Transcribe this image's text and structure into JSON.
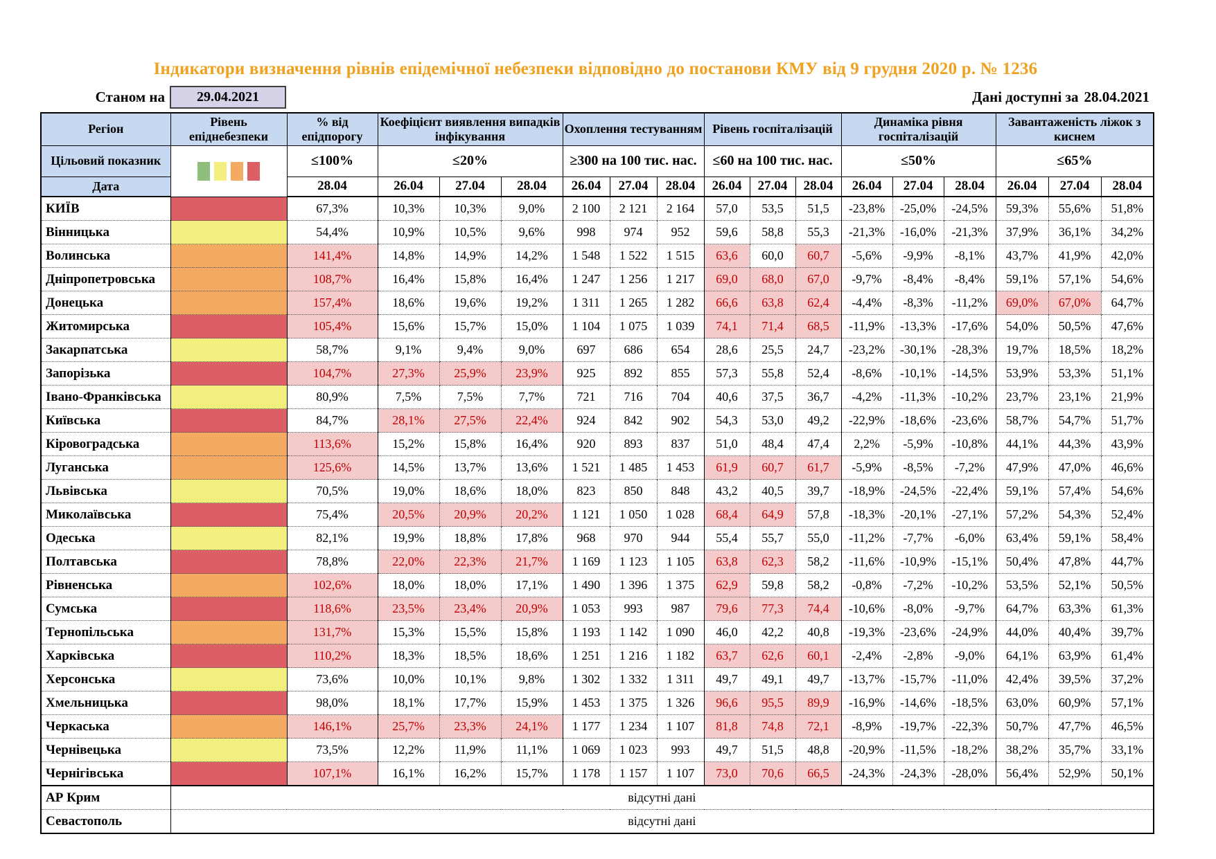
{
  "page_title": "Індикатори визначення рівнів епідемічної небезпеки відповідно до постанови КМУ від 9 грудня 2020 р. № 1236",
  "header": {
    "as_of_label": "Станом на",
    "as_of_date": "29.04.2021",
    "available_label": "Дані доступні за",
    "available_date": "28.04.2021"
  },
  "colors": {
    "title_orange": "#EFA11F",
    "header_bg": "#C6D9F0",
    "date_box_bg": "#D8D2E8",
    "level_green": "#90BE7D",
    "level_yellow": "#F2EF7E",
    "level_orange": "#F3AB62",
    "level_red": "#DD5F66",
    "highlight_bg": "#F5CACA",
    "highlight_text": "#C00000"
  },
  "table": {
    "region_header": "Регіон",
    "level_header": "Рівень епіднебезпеки",
    "target_label": "Цільовий показник",
    "date_label": "Дата",
    "legend_squares": [
      "green",
      "yellow",
      "orange",
      "red"
    ],
    "groups": [
      {
        "label": "% від епідпорогу",
        "target": "≤100%",
        "dates": [
          "28.04"
        ]
      },
      {
        "label": "Коефіцієнт виявлення випадків інфікування",
        "target": "≤20%",
        "dates": [
          "26.04",
          "27.04",
          "28.04"
        ]
      },
      {
        "label": "Охоплення тестуванням",
        "target": "≥300 на 100 тис. нас.",
        "dates": [
          "26.04",
          "27.04",
          "28.04"
        ]
      },
      {
        "label": "Рівень госпіталізацій",
        "target": "≤60 на 100 тис. нас.",
        "dates": [
          "26.04",
          "27.04",
          "28.04"
        ]
      },
      {
        "label": "Динаміка рівня госпіталізацій",
        "target": "≤50%",
        "dates": [
          "26.04",
          "27.04",
          "28.04"
        ]
      },
      {
        "label": "Завантаженість ліжок з киснем",
        "target": "≤65%",
        "dates": [
          "26.04",
          "27.04",
          "28.04"
        ]
      }
    ],
    "rows": [
      {
        "region": "КИЇВ",
        "level": "red",
        "values": [
          "67,3%",
          "10,3%",
          "10,3%",
          "9,0%",
          "2 100",
          "2 121",
          "2 164",
          "57,0",
          "53,5",
          "51,5",
          "-23,8%",
          "-25,0%",
          "-24,5%",
          "59,3%",
          "55,6%",
          "51,8%"
        ],
        "hl": []
      },
      {
        "region": "Вінницька",
        "level": "yellow",
        "values": [
          "54,4%",
          "10,9%",
          "10,5%",
          "9,6%",
          "998",
          "974",
          "952",
          "59,6",
          "58,8",
          "55,3",
          "-21,3%",
          "-16,0%",
          "-21,3%",
          "37,9%",
          "36,1%",
          "34,2%"
        ],
        "hl": []
      },
      {
        "region": "Волинська",
        "level": "orange",
        "values": [
          "141,4%",
          "14,8%",
          "14,9%",
          "14,2%",
          "1 548",
          "1 522",
          "1 515",
          "63,6",
          "60,0",
          "60,7",
          "-5,6%",
          "-9,9%",
          "-8,1%",
          "43,7%",
          "41,9%",
          "42,0%"
        ],
        "hl": [
          0,
          7,
          9
        ]
      },
      {
        "region": "Дніпропетровська",
        "level": "orange",
        "values": [
          "108,7%",
          "16,4%",
          "15,8%",
          "16,4%",
          "1 247",
          "1 256",
          "1 217",
          "69,0",
          "68,0",
          "67,0",
          "-9,7%",
          "-8,4%",
          "-8,4%",
          "59,1%",
          "57,1%",
          "54,6%"
        ],
        "hl": [
          0,
          7,
          8,
          9
        ]
      },
      {
        "region": "Донецька",
        "level": "orange",
        "values": [
          "157,4%",
          "18,6%",
          "19,6%",
          "19,2%",
          "1 311",
          "1 265",
          "1 282",
          "66,6",
          "63,8",
          "62,4",
          "-4,4%",
          "-8,3%",
          "-11,2%",
          "69,0%",
          "67,0%",
          "64,7%"
        ],
        "hl": [
          0,
          7,
          8,
          9,
          13,
          14
        ]
      },
      {
        "region": "Житомирська",
        "level": "red",
        "values": [
          "105,4%",
          "15,6%",
          "15,7%",
          "15,0%",
          "1 104",
          "1 075",
          "1 039",
          "74,1",
          "71,4",
          "68,5",
          "-11,9%",
          "-13,3%",
          "-17,6%",
          "54,0%",
          "50,5%",
          "47,6%"
        ],
        "hl": [
          0,
          7,
          8,
          9
        ]
      },
      {
        "region": "Закарпатська",
        "level": "yellow",
        "values": [
          "58,7%",
          "9,1%",
          "9,4%",
          "9,0%",
          "697",
          "686",
          "654",
          "28,6",
          "25,5",
          "24,7",
          "-23,2%",
          "-30,1%",
          "-28,3%",
          "19,7%",
          "18,5%",
          "18,2%"
        ],
        "hl": []
      },
      {
        "region": "Запорізька",
        "level": "red",
        "values": [
          "104,7%",
          "27,3%",
          "25,9%",
          "23,9%",
          "925",
          "892",
          "855",
          "57,3",
          "55,8",
          "52,4",
          "-8,6%",
          "-10,1%",
          "-14,5%",
          "53,9%",
          "53,3%",
          "51,1%"
        ],
        "hl": [
          0,
          1,
          2,
          3
        ]
      },
      {
        "region": "Івано-Франківська",
        "level": "yellow",
        "values": [
          "80,9%",
          "7,5%",
          "7,5%",
          "7,7%",
          "721",
          "716",
          "704",
          "40,6",
          "37,5",
          "36,7",
          "-4,2%",
          "-11,3%",
          "-10,2%",
          "23,7%",
          "23,1%",
          "21,9%"
        ],
        "hl": []
      },
      {
        "region": "Київська",
        "level": "red",
        "values": [
          "84,7%",
          "28,1%",
          "27,5%",
          "22,4%",
          "924",
          "842",
          "902",
          "54,3",
          "53,0",
          "49,2",
          "-22,9%",
          "-18,6%",
          "-23,6%",
          "58,7%",
          "54,7%",
          "51,7%"
        ],
        "hl": [
          1,
          2,
          3
        ]
      },
      {
        "region": "Кіровоградська",
        "level": "orange",
        "values": [
          "113,6%",
          "15,2%",
          "15,8%",
          "16,4%",
          "920",
          "893",
          "837",
          "51,0",
          "48,4",
          "47,4",
          "2,2%",
          "-5,9%",
          "-10,8%",
          "44,1%",
          "44,3%",
          "43,9%"
        ],
        "hl": [
          0
        ]
      },
      {
        "region": "Луганська",
        "level": "orange",
        "values": [
          "125,6%",
          "14,5%",
          "13,7%",
          "13,6%",
          "1 521",
          "1 485",
          "1 453",
          "61,9",
          "60,7",
          "61,7",
          "-5,9%",
          "-8,5%",
          "-7,2%",
          "47,9%",
          "47,0%",
          "46,6%"
        ],
        "hl": [
          0,
          7,
          8,
          9
        ]
      },
      {
        "region": "Львівська",
        "level": "yellow",
        "values": [
          "70,5%",
          "19,0%",
          "18,6%",
          "18,0%",
          "823",
          "850",
          "848",
          "43,2",
          "40,5",
          "39,7",
          "-18,9%",
          "-24,5%",
          "-22,4%",
          "59,1%",
          "57,4%",
          "54,6%"
        ],
        "hl": []
      },
      {
        "region": "Миколаївська",
        "level": "red",
        "values": [
          "75,4%",
          "20,5%",
          "20,9%",
          "20,2%",
          "1 121",
          "1 050",
          "1 028",
          "68,4",
          "64,9",
          "57,8",
          "-18,3%",
          "-20,1%",
          "-27,1%",
          "57,2%",
          "54,3%",
          "52,4%"
        ],
        "hl": [
          1,
          2,
          3,
          7,
          8
        ]
      },
      {
        "region": "Одеська",
        "level": "yellow",
        "values": [
          "82,1%",
          "19,9%",
          "18,8%",
          "17,8%",
          "968",
          "970",
          "944",
          "55,4",
          "55,7",
          "55,0",
          "-11,2%",
          "-7,7%",
          "-6,0%",
          "63,4%",
          "59,1%",
          "58,4%"
        ],
        "hl": []
      },
      {
        "region": "Полтавська",
        "level": "red",
        "values": [
          "78,8%",
          "22,0%",
          "22,3%",
          "21,7%",
          "1 169",
          "1 123",
          "1 105",
          "63,8",
          "62,3",
          "58,2",
          "-11,6%",
          "-10,9%",
          "-15,1%",
          "50,4%",
          "47,8%",
          "44,7%"
        ],
        "hl": [
          1,
          2,
          3,
          7,
          8
        ]
      },
      {
        "region": "Рівненська",
        "level": "orange",
        "values": [
          "102,6%",
          "18,0%",
          "18,0%",
          "17,1%",
          "1 490",
          "1 396",
          "1 375",
          "62,9",
          "59,8",
          "58,2",
          "-0,8%",
          "-7,2%",
          "-10,2%",
          "53,5%",
          "52,1%",
          "50,5%"
        ],
        "hl": [
          0,
          7
        ]
      },
      {
        "region": "Сумська",
        "level": "red",
        "values": [
          "118,6%",
          "23,5%",
          "23,4%",
          "20,9%",
          "1 053",
          "993",
          "987",
          "79,6",
          "77,3",
          "74,4",
          "-10,6%",
          "-8,0%",
          "-9,7%",
          "64,7%",
          "63,3%",
          "61,3%"
        ],
        "hl": [
          0,
          1,
          2,
          3,
          7,
          8,
          9
        ]
      },
      {
        "region": "Тернопільська",
        "level": "orange",
        "values": [
          "131,7%",
          "15,3%",
          "15,5%",
          "15,8%",
          "1 193",
          "1 142",
          "1 090",
          "46,0",
          "42,2",
          "40,8",
          "-19,3%",
          "-23,6%",
          "-24,9%",
          "44,0%",
          "40,4%",
          "39,7%"
        ],
        "hl": [
          0
        ]
      },
      {
        "region": "Харківська",
        "level": "red",
        "values": [
          "110,2%",
          "18,3%",
          "18,5%",
          "18,6%",
          "1 251",
          "1 216",
          "1 182",
          "63,7",
          "62,6",
          "60,1",
          "-2,4%",
          "-2,8%",
          "-9,0%",
          "64,1%",
          "63,9%",
          "61,4%"
        ],
        "hl": [
          0,
          7,
          8,
          9
        ]
      },
      {
        "region": "Херсонська",
        "level": "yellow",
        "values": [
          "73,6%",
          "10,0%",
          "10,1%",
          "9,8%",
          "1 302",
          "1 332",
          "1 311",
          "49,7",
          "49,1",
          "49,7",
          "-13,7%",
          "-15,7%",
          "-11,0%",
          "42,4%",
          "39,5%",
          "37,2%"
        ],
        "hl": []
      },
      {
        "region": "Хмельницька",
        "level": "red",
        "values": [
          "98,0%",
          "18,1%",
          "17,7%",
          "15,9%",
          "1 453",
          "1 375",
          "1 326",
          "96,6",
          "95,5",
          "89,9",
          "-16,9%",
          "-14,6%",
          "-18,5%",
          "63,0%",
          "60,9%",
          "57,1%"
        ],
        "hl": [
          7,
          8,
          9
        ]
      },
      {
        "region": "Черкаська",
        "level": "orange",
        "values": [
          "146,1%",
          "25,7%",
          "23,3%",
          "24,1%",
          "1 177",
          "1 234",
          "1 107",
          "81,8",
          "74,8",
          "72,1",
          "-8,9%",
          "-19,7%",
          "-22,3%",
          "50,7%",
          "47,7%",
          "46,5%"
        ],
        "hl": [
          0,
          1,
          2,
          3,
          7,
          8,
          9
        ]
      },
      {
        "region": "Чернівецька",
        "level": "yellow",
        "values": [
          "73,5%",
          "12,2%",
          "11,9%",
          "11,1%",
          "1 069",
          "1 023",
          "993",
          "49,7",
          "51,5",
          "48,8",
          "-20,9%",
          "-11,5%",
          "-18,2%",
          "38,2%",
          "35,7%",
          "33,1%"
        ],
        "hl": []
      },
      {
        "region": "Чернігівська",
        "level": "red",
        "values": [
          "107,1%",
          "16,1%",
          "16,2%",
          "15,7%",
          "1 178",
          "1 157",
          "1 107",
          "73,0",
          "70,6",
          "66,5",
          "-24,3%",
          "-24,3%",
          "-28,0%",
          "56,4%",
          "52,9%",
          "50,1%"
        ],
        "hl": [
          0,
          7,
          8,
          9
        ]
      }
    ],
    "no_data": [
      {
        "region": "АР Крим",
        "text": "відсутні дані"
      },
      {
        "region": "Севастополь",
        "text": "відсутні дані"
      }
    ]
  }
}
